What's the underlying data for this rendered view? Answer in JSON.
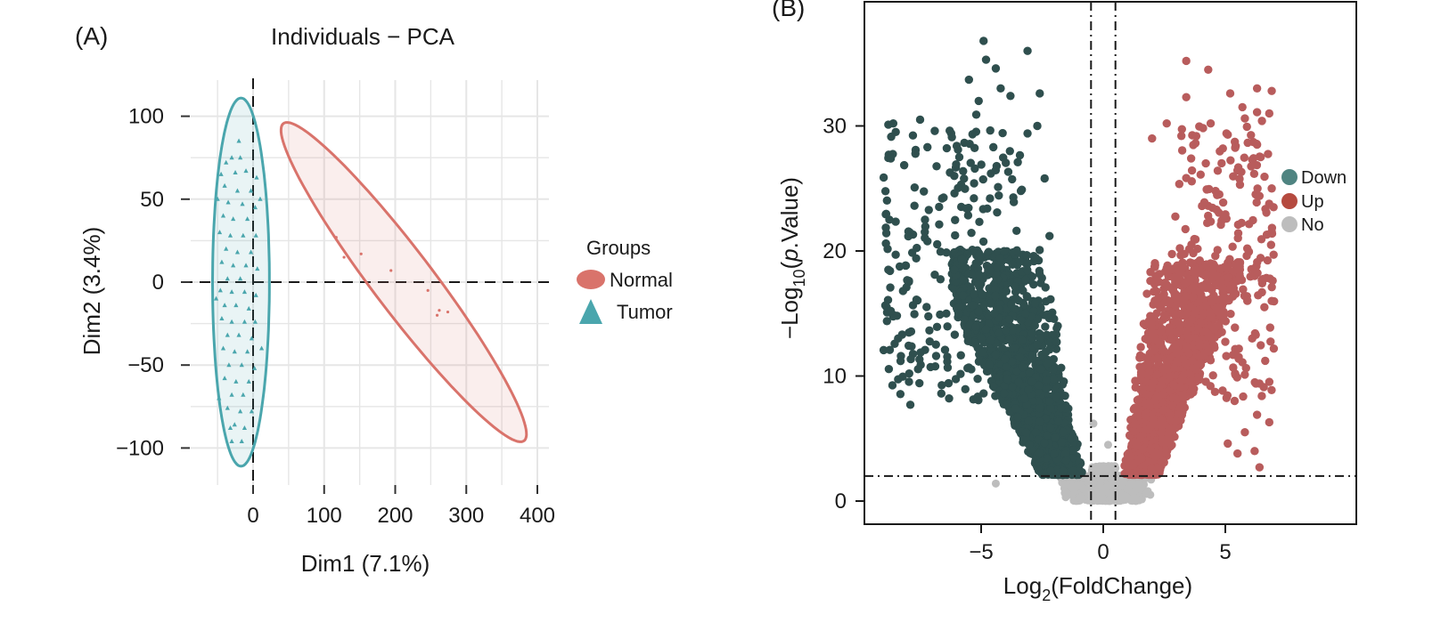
{
  "chart_data": [
    {
      "type": "scatter",
      "panel_label": "(A)",
      "title": "Individuals − PCA",
      "xlabel": "Dim1 (7.1%)",
      "ylabel": "Dim2 (3.4%)",
      "xlim": [
        -60,
        410
      ],
      "ylim": [
        -115,
        120
      ],
      "x_ticks": [
        0,
        100,
        200,
        300,
        400
      ],
      "x_tick_labels": [
        "0",
        "100",
        "200",
        "300",
        "400"
      ],
      "y_ticks": [
        100,
        50,
        0,
        -50,
        -100
      ],
      "y_tick_labels": [
        "100",
        "50",
        "0",
        "−50",
        "−100"
      ],
      "grid": true,
      "reference_lines": {
        "x": 0,
        "y": 0,
        "style": "dashed"
      },
      "legend": {
        "title": "Groups",
        "position": "right",
        "entries": [
          {
            "label": "Normal",
            "color": "#d9736b",
            "marker": "ellipse"
          },
          {
            "label": "Tumor",
            "color": "#4aa6ad",
            "marker": "triangle"
          }
        ]
      },
      "series": [
        {
          "name": "Tumor",
          "color": "#4aa6ad",
          "marker": "triangle",
          "ellipse": {
            "center": [
              -17,
              0
            ],
            "semi_axis_x": 40,
            "semi_axis_y": 111,
            "rotation_deg": 0
          },
          "points": [
            [
              -38,
              72
            ],
            [
              -30,
              75
            ],
            [
              -18,
              75
            ],
            [
              -45,
              65
            ],
            [
              -25,
              66
            ],
            [
              -10,
              67
            ],
            [
              5,
              63
            ],
            [
              -40,
              58
            ],
            [
              -22,
              55
            ],
            [
              -3,
              55
            ],
            [
              -35,
              48
            ],
            [
              -15,
              47
            ],
            [
              3,
              45
            ],
            [
              -42,
              40
            ],
            [
              -28,
              38
            ],
            [
              -8,
              38
            ],
            [
              -47,
              30
            ],
            [
              -32,
              28
            ],
            [
              -14,
              28
            ],
            [
              4,
              28
            ],
            [
              -38,
              20
            ],
            [
              -22,
              18
            ],
            [
              -3,
              18
            ],
            [
              -44,
              12
            ],
            [
              -28,
              10
            ],
            [
              -10,
              10
            ],
            [
              6,
              8
            ],
            [
              -36,
              2
            ],
            [
              -18,
              2
            ],
            [
              -46,
              -5
            ],
            [
              -30,
              -6
            ],
            [
              -12,
              -6
            ],
            [
              4,
              -8
            ],
            [
              -40,
              -14
            ],
            [
              -24,
              -14
            ],
            [
              -6,
              -16
            ],
            [
              -44,
              -22
            ],
            [
              -30,
              -24
            ],
            [
              -12,
              -24
            ],
            [
              3,
              -24
            ],
            [
              -36,
              -32
            ],
            [
              -20,
              -32
            ],
            [
              -2,
              -34
            ],
            [
              -42,
              -40
            ],
            [
              -26,
              -42
            ],
            [
              -8,
              -42
            ],
            [
              -34,
              -50
            ],
            [
              -16,
              -50
            ],
            [
              2,
              -52
            ],
            [
              -40,
              -58
            ],
            [
              -24,
              -60
            ],
            [
              -6,
              -60
            ],
            [
              -30,
              -68
            ],
            [
              -14,
              -68
            ],
            [
              -36,
              -76
            ],
            [
              -18,
              -78
            ],
            [
              -2,
              -78
            ],
            [
              -26,
              -86
            ],
            [
              -12,
              -88
            ],
            [
              -30,
              -96
            ],
            [
              -16,
              -96
            ],
            [
              -50,
              50
            ],
            [
              -52,
              -10
            ],
            [
              -48,
              -70
            ],
            [
              10,
              50
            ],
            [
              12,
              -40
            ],
            [
              -20,
              85
            ],
            [
              -32,
              -88
            ]
          ]
        },
        {
          "name": "Normal",
          "color": "#d9736b",
          "marker": "point",
          "ellipse": {
            "center": [
              212,
              0
            ],
            "semi_axis_x": 196,
            "semi_axis_y": 26,
            "rotation_deg": -28.5
          },
          "points": [
            [
              117,
              27
            ],
            [
              128,
              15
            ],
            [
              152,
              17
            ],
            [
              194,
              7
            ],
            [
              246,
              -5
            ],
            [
              262,
              -17
            ],
            [
              274,
              -18
            ],
            [
              259,
              -20
            ]
          ]
        }
      ]
    },
    {
      "type": "scatter",
      "panel_label": "(B)",
      "xlabel": "Log2(FoldChange)",
      "ylabel": "−Log10(p.Value)",
      "xlim": [
        -9.8,
        10
      ],
      "ylim": [
        -1.9,
        40
      ],
      "x_ticks": [
        -5,
        0,
        5
      ],
      "x_tick_labels": [
        "−5",
        "0",
        "5"
      ],
      "y_ticks": [
        0,
        10,
        20,
        30
      ],
      "y_tick_labels": [
        "0",
        "10",
        "20",
        "30"
      ],
      "grid": false,
      "thresholds": {
        "log2fc": [
          -0.5,
          0.5
        ],
        "neg_log10_p": 2,
        "style": "dot-dash"
      },
      "legend": {
        "position": "right",
        "entries": [
          {
            "label": "Down",
            "color": "#4f8481"
          },
          {
            "label": "Up",
            "color": "#b54a3f"
          },
          {
            "label": "No",
            "color": "#bdbdbd"
          }
        ]
      },
      "series": [
        {
          "name": "Down",
          "color": "#2f4f4e",
          "points": [
            [
              -4.9,
              36.8
            ],
            [
              -4.8,
              35.3
            ],
            [
              -4.4,
              34.6
            ],
            [
              -5.5,
              33.7
            ],
            [
              -3.1,
              36
            ],
            [
              -4.2,
              33
            ],
            [
              -5.1,
              32
            ],
            [
              -3.8,
              32.4
            ],
            [
              -2.6,
              32.6
            ],
            [
              -8.8,
              30.1
            ],
            [
              -8.6,
              30.2
            ],
            [
              -7.5,
              30.5
            ],
            [
              -6.9,
              29.6
            ],
            [
              -2.7,
              30
            ],
            [
              -3.1,
              29.4
            ],
            [
              -6.2,
              29.1
            ],
            [
              -5.2,
              30.9
            ],
            [
              -7.2,
              28.3
            ],
            [
              -8.7,
              27.4
            ],
            [
              -6,
              28.4
            ],
            [
              -4.5,
              28.3
            ],
            [
              -8.9,
              20.6
            ],
            [
              -8.5,
              19.7
            ],
            [
              -8.8,
              18.5
            ],
            [
              -8.2,
              16.8
            ],
            [
              -8.7,
              15.2
            ],
            [
              -8.4,
              13
            ],
            [
              -8.3,
              11.2
            ],
            [
              -7.9,
              7.7
            ],
            [
              -7.3,
              22.5
            ],
            [
              -6.6,
              24.2
            ],
            [
              -6.1,
              26
            ],
            [
              -5.6,
              23.4
            ],
            [
              -4.6,
              26.2
            ],
            [
              -3.5,
              27.1
            ],
            [
              -2.4,
              25.8
            ],
            [
              -2.2,
              21.2
            ]
          ],
          "dense_region": {
            "x_range": [
              -5.5,
              -0.6
            ],
            "y_range": [
              2,
              20
            ]
          }
        },
        {
          "name": "Up",
          "color": "#b85c5c",
          "points": [
            [
              3.4,
              35.2
            ],
            [
              4.3,
              34.5
            ],
            [
              6.3,
              33
            ],
            [
              6.9,
              32.8
            ],
            [
              5.2,
              32.6
            ],
            [
              3.4,
              32.3
            ],
            [
              5.7,
              31.5
            ],
            [
              6.3,
              31.1
            ],
            [
              6.8,
              31
            ],
            [
              5.8,
              30.6
            ],
            [
              2.6,
              30.2
            ],
            [
              4.4,
              30.2
            ],
            [
              6.5,
              30.4
            ],
            [
              2,
              29
            ],
            [
              3.2,
              29.2
            ],
            [
              5.1,
              29.3
            ],
            [
              6.3,
              28.5
            ],
            [
              4.9,
              28.2
            ],
            [
              6.1,
              27.3
            ],
            [
              3.6,
              27.4
            ],
            [
              5.6,
              25.3
            ],
            [
              4.6,
              24.8
            ],
            [
              6.4,
              24.4
            ],
            [
              6.9,
              25
            ],
            [
              6.7,
              21.3
            ],
            [
              6.2,
              18
            ],
            [
              6.5,
              16.7
            ],
            [
              6.9,
              16
            ],
            [
              6.6,
              15.5
            ],
            [
              6.1,
              13
            ],
            [
              5.7,
              11.1
            ],
            [
              6.4,
              9.4
            ],
            [
              6.3,
              6.9
            ],
            [
              6.8,
              6.3
            ],
            [
              5.8,
              5.5
            ],
            [
              6.2,
              4
            ],
            [
              6.4,
              2.7
            ],
            [
              5.5,
              3.8
            ],
            [
              5.1,
              4.6
            ],
            [
              5.4,
              10.2
            ],
            [
              5.9,
              20.2
            ],
            [
              4.8,
              18.6
            ],
            [
              4.1,
              15
            ]
          ],
          "dense_region": {
            "x_range": [
              0.6,
              4.6
            ],
            "y_range": [
              2,
              19
            ]
          }
        },
        {
          "name": "No",
          "color": "#bdbdbd",
          "points": [
            [
              -4.4,
              1.4
            ],
            [
              -0.4,
              6.2
            ],
            [
              0.2,
              4.5
            ]
          ],
          "dense_region": {
            "x_range": [
              -4.4,
              5.3
            ],
            "y_range": [
              0,
              2
            ]
          }
        }
      ]
    }
  ]
}
